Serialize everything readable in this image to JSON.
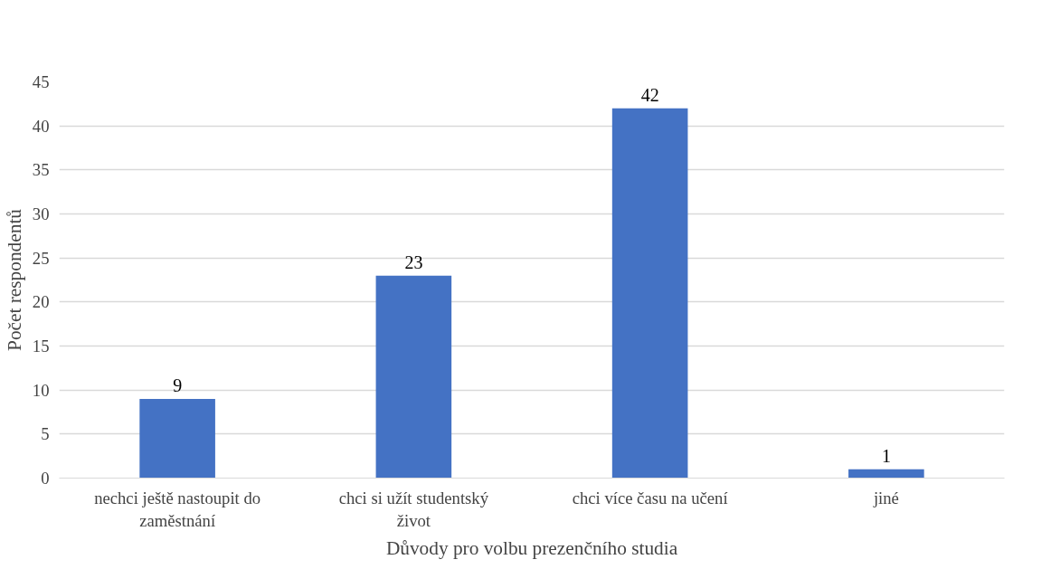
{
  "chart_data": {
    "type": "bar",
    "xlabel": "Důvody pro volbu prezenčního studia",
    "ylabel": "Počet respondentů",
    "categories": [
      "nechci ještě nastoupit do zaměstnání",
      "chci si užít studentský život",
      "chci více času na učení",
      "jiné"
    ],
    "values": [
      9,
      23,
      42,
      1
    ],
    "color": "#4472c4",
    "ylim": [
      0,
      45
    ],
    "yticks": [
      0,
      5,
      10,
      15,
      20,
      25,
      30,
      35,
      40,
      45
    ],
    "grid": "y",
    "data_labels": true
  }
}
